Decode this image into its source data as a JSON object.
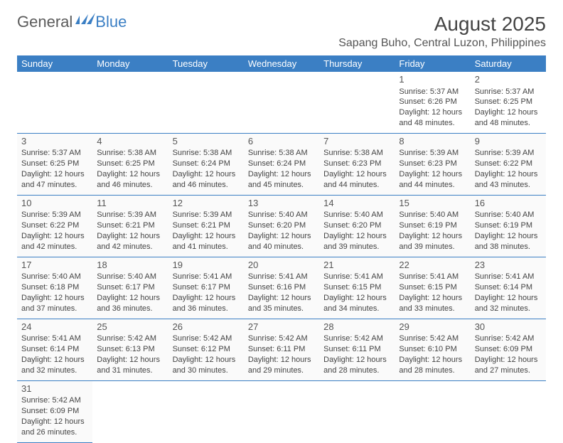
{
  "logo": {
    "text1": "General",
    "text2": "Blue"
  },
  "title": "August 2025",
  "subtitle": "Sapang Buho, Central Luzon, Philippines",
  "header_bg": "#3b7fc4",
  "day_headers": [
    "Sunday",
    "Monday",
    "Tuesday",
    "Wednesday",
    "Thursday",
    "Friday",
    "Saturday"
  ],
  "weeks": [
    [
      null,
      null,
      null,
      null,
      null,
      {
        "n": "1",
        "sr": "5:37 AM",
        "ss": "6:26 PM",
        "dl": "12 hours and 48 minutes."
      },
      {
        "n": "2",
        "sr": "5:37 AM",
        "ss": "6:25 PM",
        "dl": "12 hours and 48 minutes."
      }
    ],
    [
      {
        "n": "3",
        "sr": "5:37 AM",
        "ss": "6:25 PM",
        "dl": "12 hours and 47 minutes."
      },
      {
        "n": "4",
        "sr": "5:38 AM",
        "ss": "6:25 PM",
        "dl": "12 hours and 46 minutes."
      },
      {
        "n": "5",
        "sr": "5:38 AM",
        "ss": "6:24 PM",
        "dl": "12 hours and 46 minutes."
      },
      {
        "n": "6",
        "sr": "5:38 AM",
        "ss": "6:24 PM",
        "dl": "12 hours and 45 minutes."
      },
      {
        "n": "7",
        "sr": "5:38 AM",
        "ss": "6:23 PM",
        "dl": "12 hours and 44 minutes."
      },
      {
        "n": "8",
        "sr": "5:39 AM",
        "ss": "6:23 PM",
        "dl": "12 hours and 44 minutes."
      },
      {
        "n": "9",
        "sr": "5:39 AM",
        "ss": "6:22 PM",
        "dl": "12 hours and 43 minutes."
      }
    ],
    [
      {
        "n": "10",
        "sr": "5:39 AM",
        "ss": "6:22 PM",
        "dl": "12 hours and 42 minutes."
      },
      {
        "n": "11",
        "sr": "5:39 AM",
        "ss": "6:21 PM",
        "dl": "12 hours and 42 minutes."
      },
      {
        "n": "12",
        "sr": "5:39 AM",
        "ss": "6:21 PM",
        "dl": "12 hours and 41 minutes."
      },
      {
        "n": "13",
        "sr": "5:40 AM",
        "ss": "6:20 PM",
        "dl": "12 hours and 40 minutes."
      },
      {
        "n": "14",
        "sr": "5:40 AM",
        "ss": "6:20 PM",
        "dl": "12 hours and 39 minutes."
      },
      {
        "n": "15",
        "sr": "5:40 AM",
        "ss": "6:19 PM",
        "dl": "12 hours and 39 minutes."
      },
      {
        "n": "16",
        "sr": "5:40 AM",
        "ss": "6:19 PM",
        "dl": "12 hours and 38 minutes."
      }
    ],
    [
      {
        "n": "17",
        "sr": "5:40 AM",
        "ss": "6:18 PM",
        "dl": "12 hours and 37 minutes."
      },
      {
        "n": "18",
        "sr": "5:40 AM",
        "ss": "6:17 PM",
        "dl": "12 hours and 36 minutes."
      },
      {
        "n": "19",
        "sr": "5:41 AM",
        "ss": "6:17 PM",
        "dl": "12 hours and 36 minutes."
      },
      {
        "n": "20",
        "sr": "5:41 AM",
        "ss": "6:16 PM",
        "dl": "12 hours and 35 minutes."
      },
      {
        "n": "21",
        "sr": "5:41 AM",
        "ss": "6:15 PM",
        "dl": "12 hours and 34 minutes."
      },
      {
        "n": "22",
        "sr": "5:41 AM",
        "ss": "6:15 PM",
        "dl": "12 hours and 33 minutes."
      },
      {
        "n": "23",
        "sr": "5:41 AM",
        "ss": "6:14 PM",
        "dl": "12 hours and 32 minutes."
      }
    ],
    [
      {
        "n": "24",
        "sr": "5:41 AM",
        "ss": "6:14 PM",
        "dl": "12 hours and 32 minutes."
      },
      {
        "n": "25",
        "sr": "5:42 AM",
        "ss": "6:13 PM",
        "dl": "12 hours and 31 minutes."
      },
      {
        "n": "26",
        "sr": "5:42 AM",
        "ss": "6:12 PM",
        "dl": "12 hours and 30 minutes."
      },
      {
        "n": "27",
        "sr": "5:42 AM",
        "ss": "6:11 PM",
        "dl": "12 hours and 29 minutes."
      },
      {
        "n": "28",
        "sr": "5:42 AM",
        "ss": "6:11 PM",
        "dl": "12 hours and 28 minutes."
      },
      {
        "n": "29",
        "sr": "5:42 AM",
        "ss": "6:10 PM",
        "dl": "12 hours and 28 minutes."
      },
      {
        "n": "30",
        "sr": "5:42 AM",
        "ss": "6:09 PM",
        "dl": "12 hours and 27 minutes."
      }
    ],
    [
      {
        "n": "31",
        "sr": "5:42 AM",
        "ss": "6:09 PM",
        "dl": "12 hours and 26 minutes."
      },
      null,
      null,
      null,
      null,
      null,
      null
    ]
  ],
  "labels": {
    "sunrise": "Sunrise: ",
    "sunset": "Sunset: ",
    "daylight": "Daylight: "
  }
}
